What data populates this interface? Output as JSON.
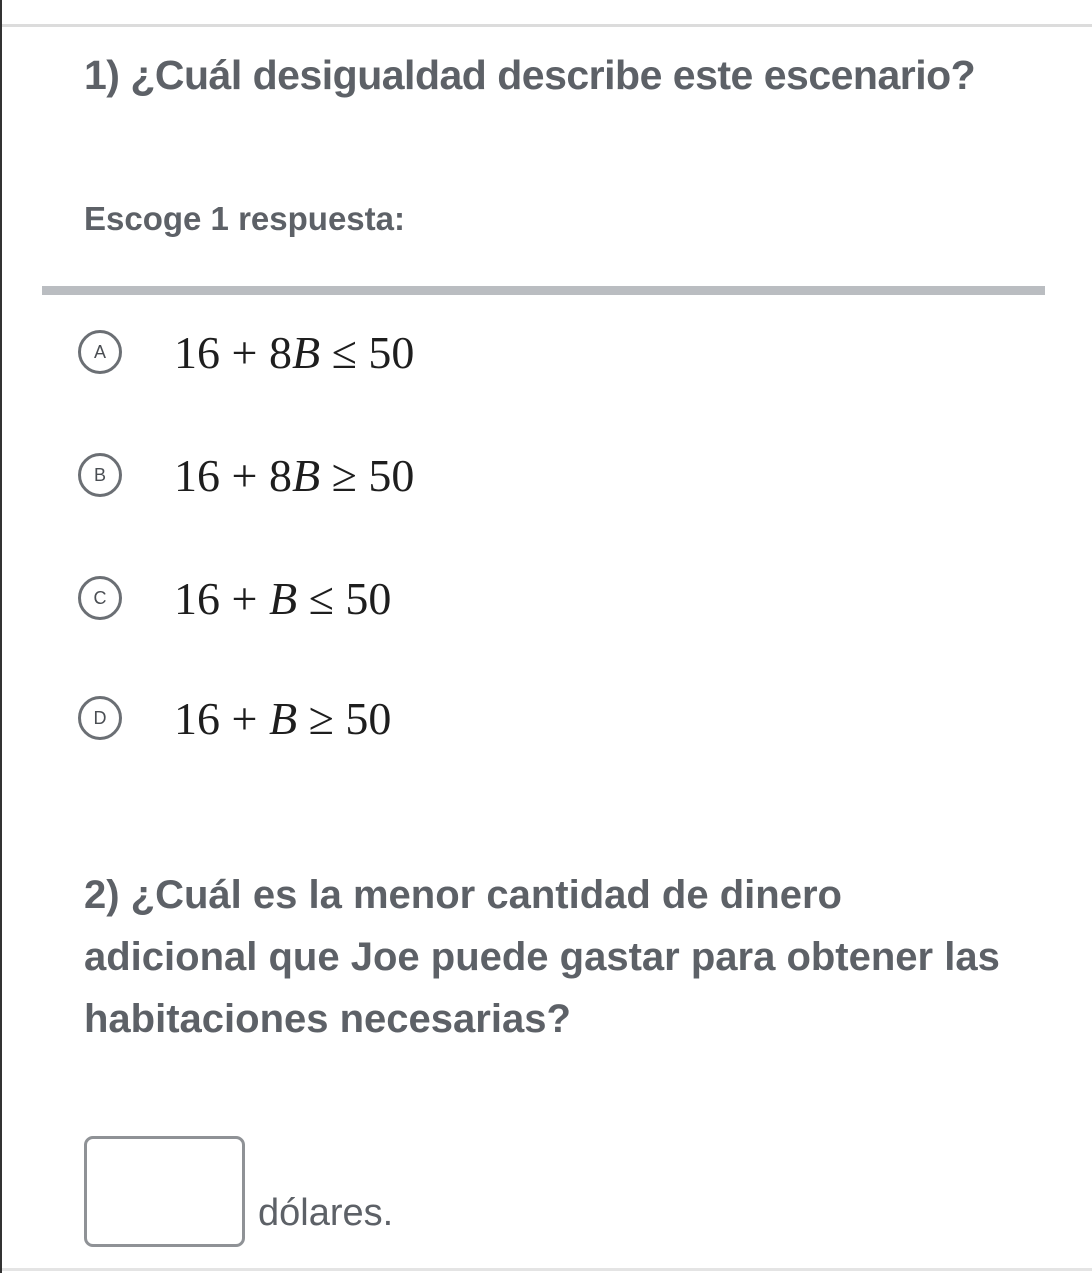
{
  "question1": {
    "title": "1) ¿Cuál desigualdad describe este escenario?",
    "prompt": "Escoge 1 respuesta:",
    "options": [
      {
        "letter": "A",
        "lhs": "16 + 8",
        "var": "B",
        "op": " ≤ ",
        "rhs": "50"
      },
      {
        "letter": "B",
        "lhs": "16 + 8",
        "var": "B",
        "op": " ≥ ",
        "rhs": "50"
      },
      {
        "letter": "C",
        "lhs": "16 + ",
        "var": "B",
        "op": " ≤ ",
        "rhs": "50"
      },
      {
        "letter": "D",
        "lhs": "16 + ",
        "var": "B",
        "op": " ≥ ",
        "rhs": "50"
      }
    ]
  },
  "question2": {
    "title": "2) ¿Cuál es la menor cantidad de dinero adicional que Joe puede gastar para obtener las habitaciones necesarias?",
    "answer_value": "",
    "unit": "dólares."
  }
}
